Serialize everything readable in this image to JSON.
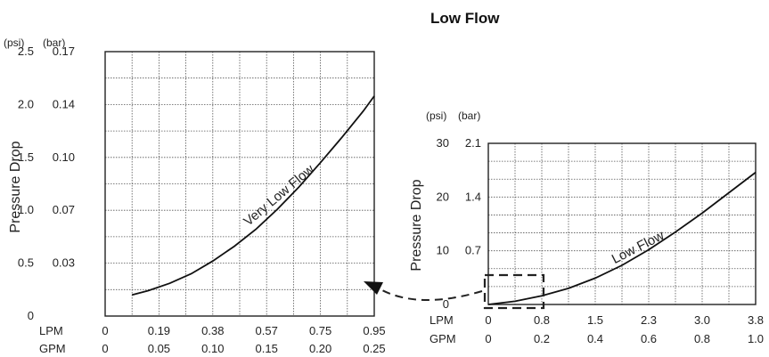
{
  "page": {
    "title": "Low Flow"
  },
  "chart_data": [
    {
      "type": "line",
      "title": "",
      "ylabel": "Pressure Drop",
      "unit_psi": "(psi)",
      "unit_bar": "(bar)",
      "curve_label": "Very Low Flow",
      "y_psi_ticks": [
        "0",
        "0.5",
        "1.0",
        "1.5",
        "2.0",
        "2.5"
      ],
      "y_bar_ticks": [
        "",
        "0.03",
        "0.07",
        "0.10",
        "0.14",
        "0.17"
      ],
      "x_lpm_label": "LPM",
      "x_lpm_ticks": [
        "0",
        "0.19",
        "0.38",
        "0.57",
        "0.75",
        "0.95"
      ],
      "x_gpm_label": "GPM",
      "x_gpm_ticks": [
        "0",
        "0.05",
        "0.10",
        "0.15",
        "0.20",
        "0.25"
      ],
      "xlim_gpm": [
        0,
        0.25
      ],
      "ylim_psi": [
        0,
        2.5
      ],
      "grid": true,
      "series": [
        {
          "x_gpm": [
            0.025,
            0.04,
            0.06,
            0.08,
            0.1,
            0.12,
            0.14,
            0.16,
            0.18,
            0.2,
            0.22,
            0.24,
            0.25
          ],
          "y_psi": [
            0.2,
            0.24,
            0.31,
            0.4,
            0.52,
            0.66,
            0.82,
            1.01,
            1.22,
            1.45,
            1.69,
            1.94,
            2.08
          ]
        }
      ]
    },
    {
      "type": "line",
      "title": "",
      "ylabel": "Pressure Drop",
      "unit_psi": "(psi)",
      "unit_bar": "(bar)",
      "curve_label": "Low Flow",
      "y_psi_ticks": [
        "0",
        "10",
        "20",
        "30"
      ],
      "y_bar_ticks": [
        "",
        "0.7",
        "1.4",
        "2.1"
      ],
      "x_lpm_label": "LPM",
      "x_lpm_ticks": [
        "0",
        "0.8",
        "1.5",
        "2.3",
        "3.0",
        "3.8"
      ],
      "x_gpm_label": "GPM",
      "x_gpm_ticks": [
        "0",
        "0.2",
        "0.4",
        "0.6",
        "0.8",
        "1.0"
      ],
      "xlim_gpm": [
        0,
        1.0
      ],
      "ylim_psi": [
        0,
        30
      ],
      "grid": true,
      "series": [
        {
          "x_gpm": [
            0.0,
            0.1,
            0.2,
            0.3,
            0.4,
            0.5,
            0.6,
            0.7,
            0.8,
            0.9,
            1.0
          ],
          "y_psi": [
            0.0,
            0.6,
            1.6,
            3.0,
            4.9,
            7.3,
            10.2,
            13.5,
            17.0,
            20.8,
            24.6
          ]
        }
      ]
    }
  ]
}
